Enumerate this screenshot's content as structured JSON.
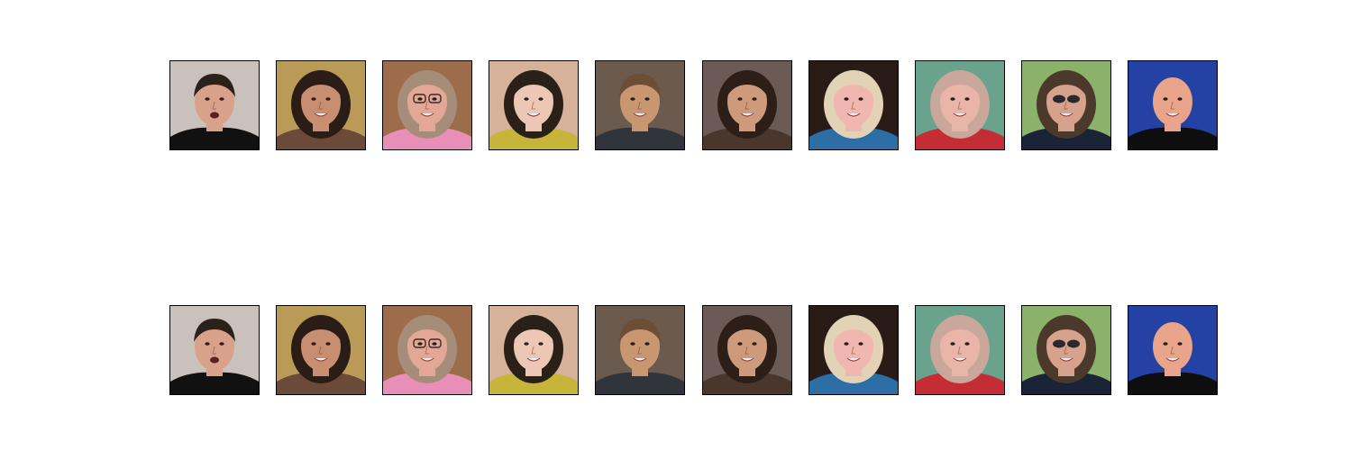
{
  "figure": {
    "rows": [
      {
        "name": "original-row",
        "tiles": [
          {
            "subject": "young-man-open-mouth",
            "bg": "#c9c1bb",
            "skin": "#d9a18a",
            "hair": "#2b211b",
            "clothes": "#111111"
          },
          {
            "subject": "young-woman-hair-back",
            "bg": "#b99a57",
            "skin": "#c88e72",
            "hair": "#2a1d16",
            "clothes": "#6b4a3a"
          },
          {
            "subject": "older-woman-glasses",
            "bg": "#9d6c4b",
            "skin": "#e2a796",
            "hair": "#a58d7a",
            "clothes": "#e78fb6"
          },
          {
            "subject": "baby-curly-hair",
            "bg": "#d6b29a",
            "skin": "#ecc7b6",
            "hair": "#2b2018",
            "clothes": "#c7b53b"
          },
          {
            "subject": "boy-group",
            "bg": "#6b5b4f",
            "skin": "#c99672",
            "hair": "#6d4d34",
            "clothes": "#32343b"
          },
          {
            "subject": "woman-long-dark-hair",
            "bg": "#6b5a55",
            "skin": "#cd9a7c",
            "hair": "#2d1f18",
            "clothes": "#4a362d"
          },
          {
            "subject": "blonde-person-dark-bg",
            "bg": "#2b1b17",
            "skin": "#f0b7b0",
            "hair": "#e3d3b6",
            "clothes": "#2d6ea7"
          },
          {
            "subject": "girl-smiling",
            "bg": "#6aa38d",
            "skin": "#e9b5a8",
            "hair": "#c9a79a",
            "clothes": "#c52d36"
          },
          {
            "subject": "woman-sunglasses",
            "bg": "#8bb16b",
            "skin": "#d7a28c",
            "hair": "#4b3a2b",
            "clothes": "#1b2437"
          },
          {
            "subject": "bald-man-looking-up",
            "bg": "#2342a3",
            "skin": "#e8a58b",
            "hair": "#e8a58b",
            "clothes": "#0e0e0e"
          }
        ]
      },
      {
        "name": "reconstruction-row",
        "tiles": [
          {
            "subject": "young-man-open-mouth",
            "bg": "#c9c1bb",
            "skin": "#d9a18a",
            "hair": "#2b211b",
            "clothes": "#111111"
          },
          {
            "subject": "young-woman-hair-back",
            "bg": "#b99a57",
            "skin": "#c88e72",
            "hair": "#2a1d16",
            "clothes": "#6b4a3a"
          },
          {
            "subject": "older-woman-glasses",
            "bg": "#9d6c4b",
            "skin": "#e2a796",
            "hair": "#a58d7a",
            "clothes": "#e78fb6"
          },
          {
            "subject": "baby-curly-hair",
            "bg": "#d6b29a",
            "skin": "#ecc7b6",
            "hair": "#2b2018",
            "clothes": "#c7b53b"
          },
          {
            "subject": "boy-group",
            "bg": "#6b5b4f",
            "skin": "#c99672",
            "hair": "#6d4d34",
            "clothes": "#32343b"
          },
          {
            "subject": "woman-long-dark-hair",
            "bg": "#6b5a55",
            "skin": "#cd9a7c",
            "hair": "#2d1f18",
            "clothes": "#4a362d"
          },
          {
            "subject": "blonde-person-dark-bg",
            "bg": "#2b1b17",
            "skin": "#f0b7b0",
            "hair": "#e3d3b6",
            "clothes": "#2d6ea7"
          },
          {
            "subject": "girl-smiling",
            "bg": "#6aa38d",
            "skin": "#e9b5a8",
            "hair": "#c9a79a",
            "clothes": "#c52d36"
          },
          {
            "subject": "woman-sunglasses",
            "bg": "#8bb16b",
            "skin": "#d7a28c",
            "hair": "#4b3a2b",
            "clothes": "#1b2437"
          },
          {
            "subject": "bald-man-looking-up",
            "bg": "#2342a3",
            "skin": "#e8a58b",
            "hair": "#e8a58b",
            "clothes": "#0e0e0e"
          }
        ]
      }
    ]
  }
}
